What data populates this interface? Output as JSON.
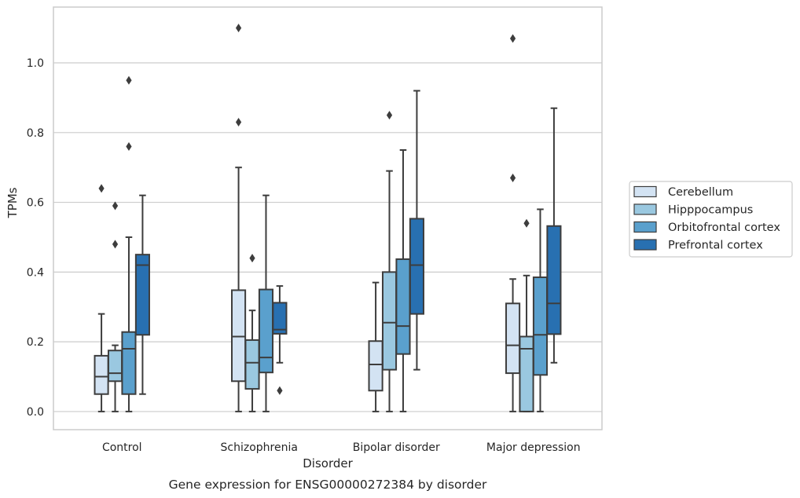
{
  "chart_data": {
    "type": "box",
    "title": "Gene expression for ENSG00000272384 by disorder",
    "xlabel": "Disorder",
    "ylabel": "TPMs",
    "ylim": [
      -0.052,
      1.16
    ],
    "yticks": [
      "0.0",
      "0.2",
      "0.4",
      "0.6",
      "0.8",
      "1.0"
    ],
    "grid": true,
    "legend_position": "right",
    "categories": [
      "Control",
      "Schizophrenia",
      "Bipolar disorder",
      "Major depression"
    ],
    "series": [
      {
        "name": "Cerebellum",
        "color": "#d3e3f3",
        "boxes": [
          {
            "whislo": 0.0,
            "q1": 0.05,
            "med": 0.1,
            "q3": 0.16,
            "whishi": 0.28,
            "fliers": [
              0.64
            ]
          },
          {
            "whislo": 0.0,
            "q1": 0.087,
            "med": 0.215,
            "q3": 0.348,
            "whishi": 0.7,
            "fliers": [
              0.83,
              1.1
            ]
          },
          {
            "whislo": 0.0,
            "q1": 0.06,
            "med": 0.135,
            "q3": 0.202,
            "whishi": 0.37,
            "fliers": []
          },
          {
            "whislo": 0.0,
            "q1": 0.11,
            "med": 0.19,
            "q3": 0.31,
            "whishi": 0.38,
            "fliers": [
              0.67,
              1.07
            ]
          }
        ]
      },
      {
        "name": "Hipppocampus",
        "color": "#9ac8e0",
        "boxes": [
          {
            "whislo": 0.0,
            "q1": 0.087,
            "med": 0.11,
            "q3": 0.175,
            "whishi": 0.19,
            "fliers": [
              0.48,
              0.59
            ]
          },
          {
            "whislo": 0.0,
            "q1": 0.065,
            "med": 0.14,
            "q3": 0.205,
            "whishi": 0.29,
            "fliers": [
              0.44
            ]
          },
          {
            "whislo": 0.0,
            "q1": 0.12,
            "med": 0.255,
            "q3": 0.4,
            "whishi": 0.69,
            "fliers": [
              0.85
            ]
          },
          {
            "whislo": 0.0,
            "q1": 0.0,
            "med": 0.18,
            "q3": 0.215,
            "whishi": 0.39,
            "fliers": [
              0.54
            ]
          }
        ]
      },
      {
        "name": "Orbitofrontal cortex",
        "color": "#5aa0cd",
        "boxes": [
          {
            "whislo": 0.0,
            "q1": 0.05,
            "med": 0.18,
            "q3": 0.228,
            "whishi": 0.5,
            "fliers": [
              0.76,
              0.95
            ]
          },
          {
            "whislo": 0.0,
            "q1": 0.112,
            "med": 0.155,
            "q3": 0.35,
            "whishi": 0.62,
            "fliers": []
          },
          {
            "whislo": 0.0,
            "q1": 0.165,
            "med": 0.245,
            "q3": 0.437,
            "whishi": 0.75,
            "fliers": []
          },
          {
            "whislo": 0.0,
            "q1": 0.105,
            "med": 0.22,
            "q3": 0.385,
            "whishi": 0.58,
            "fliers": []
          }
        ]
      },
      {
        "name": "Prefrontal cortex",
        "color": "#2870b1",
        "boxes": [
          {
            "whislo": 0.05,
            "q1": 0.22,
            "med": 0.42,
            "q3": 0.45,
            "whishi": 0.62,
            "fliers": []
          },
          {
            "whislo": 0.14,
            "q1": 0.223,
            "med": 0.235,
            "q3": 0.312,
            "whishi": 0.36,
            "fliers": [
              0.06
            ]
          },
          {
            "whislo": 0.12,
            "q1": 0.28,
            "med": 0.42,
            "q3": 0.553,
            "whishi": 0.92,
            "fliers": []
          },
          {
            "whislo": 0.14,
            "q1": 0.222,
            "med": 0.31,
            "q3": 0.532,
            "whishi": 0.87,
            "fliers": []
          }
        ]
      }
    ]
  }
}
